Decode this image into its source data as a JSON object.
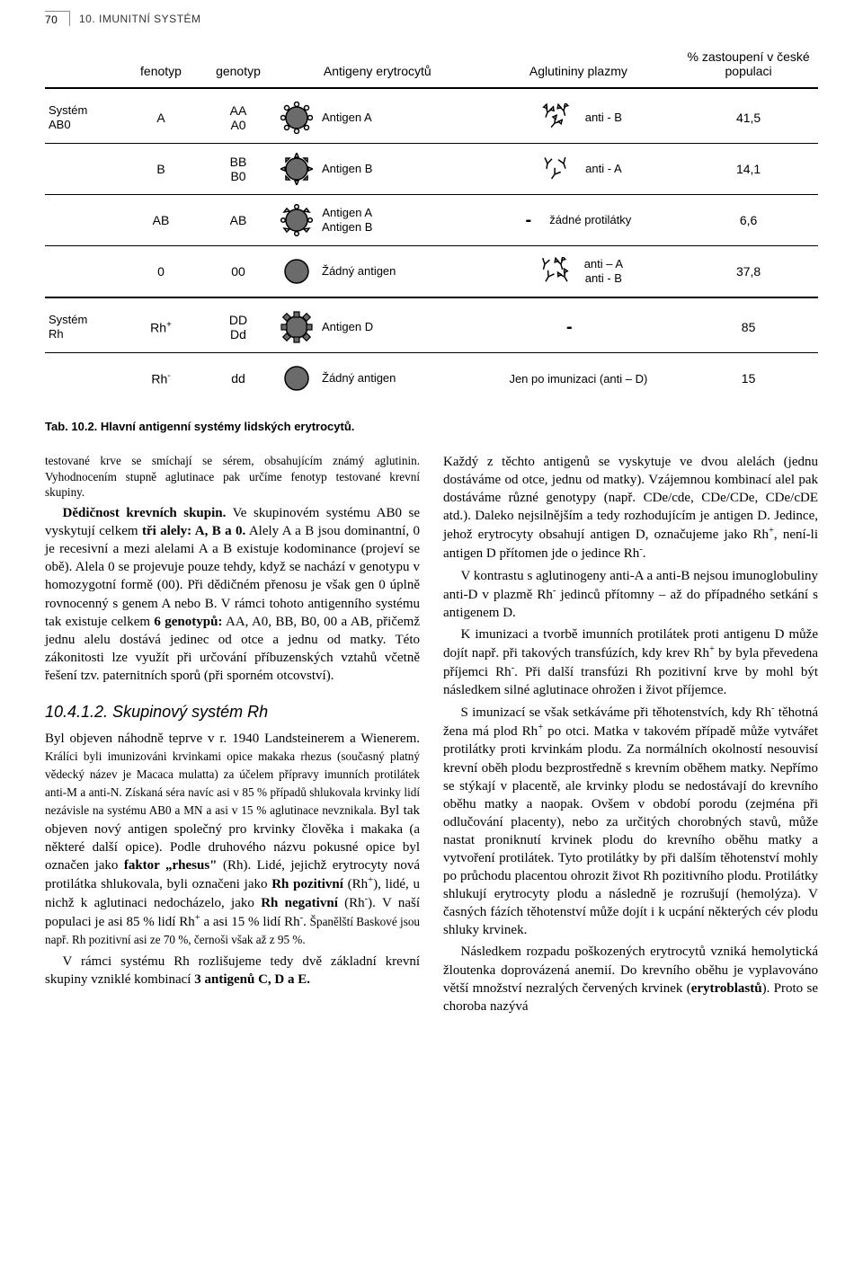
{
  "header": {
    "page_number": "70",
    "chapter": "10. IMUNITNÍ SYSTÉM"
  },
  "table": {
    "columns": [
      "fenotyp",
      "genotyp",
      "Antigeny erytrocytů",
      "Aglutininy plazmy",
      "% zastoupení v české populaci"
    ],
    "groups": [
      {
        "system_label": "Systém AB0",
        "rows": [
          {
            "pheno": "A",
            "geno_lines": [
              "AA",
              "A0"
            ],
            "antigen_icon": "ag-a",
            "antigen_label": "Antigen A",
            "agg_icon": "agg-b",
            "agg_label": "anti - B",
            "pct": "41,5"
          },
          {
            "pheno": "B",
            "geno_lines": [
              "BB",
              "B0"
            ],
            "antigen_icon": "ag-b",
            "antigen_label": "Antigen B",
            "agg_icon": "agg-a",
            "agg_label": "anti - A",
            "pct": "14,1"
          },
          {
            "pheno": "AB",
            "geno_lines": [
              "AB"
            ],
            "antigen_icon": "ag-ab",
            "antigen_label": "Antigen A\nAntigen B",
            "agg_icon": "dash",
            "agg_label": "žádné protilátky",
            "pct": "6,6"
          },
          {
            "pheno": "0",
            "geno_lines": [
              "00"
            ],
            "antigen_icon": "circle",
            "antigen_label": "Žádný antigen",
            "agg_icon": "agg-ab",
            "agg_label": "anti – A\nanti - B",
            "pct": "37,8"
          }
        ]
      },
      {
        "system_label": "Systém Rh",
        "rows": [
          {
            "pheno": "Rh+",
            "geno_lines": [
              "DD",
              "Dd"
            ],
            "antigen_icon": "ag-d",
            "antigen_label": "Antigen D",
            "agg_icon": "dash",
            "agg_label": "",
            "pct": "85"
          },
          {
            "pheno": "Rh-",
            "geno_lines": [
              "dd"
            ],
            "antigen_icon": "circle",
            "antigen_label": "Žádný antigen",
            "agg_icon": "none",
            "agg_label": "Jen po imunizaci (anti – D)",
            "pct": "15"
          }
        ]
      }
    ]
  },
  "caption": "Tab. 10.2. Hlavní antigenní systémy lidských erytrocytů.",
  "body": {
    "p1": "testované krve se smíchají se sérem, obsahujícím známý aglutinin. Vyhodnocením stupně aglutinace pak určíme fenotyp testované krevní skupiny.",
    "p2a": "Dědičnost krevních skupin.",
    "p2b": " Ve skupinovém systému AB0 se vyskytují celkem ",
    "p2c": "tři alely: A, B a 0.",
    "p2d": " Alely A a B jsou dominantní, 0 je recesivní a mezi alelami A a B existuje kodominance (projeví se obě). Alela 0 se projevuje pouze tehdy, když se nachází v genotypu v homozygotní formě (00). Při dědičném přenosu je však gen 0 úplně rovnocenný s genem A nebo B. V rámci tohoto antigenního systému tak existuje celkem ",
    "p2e": "6 genotypů:",
    "p2f": " AA, A0, BB, B0, 00 a AB",
    "p2g": ", přičemž jednu alelu dostává jedinec od otce a jednu od matky. Této zákonitosti lze využít při určování příbuzenských vztahů včetně řešení tzv. paternitních sporů (při sporném otcovství).",
    "h4": "10.4.1.2. Skupinový systém Rh",
    "p3a": "Byl objeven náhodně teprve v r. 1940 Landsteinerem a Wienerem. ",
    "p3b": "Králíci byli imunizováni krvinkami opice makaka rhezus (současný platný vědecký název je Macaca mulatta) za účelem přípravy imunních protilátek anti-M a anti-N. Získaná séra navíc asi v 85 % případů shlukovala krvinky lidí nezávisle na systému AB0 a MN a asi v 15 % aglutinace nevznikala. ",
    "p3c": "Byl tak objeven nový antigen společný pro krvinky člověka i makaka (a některé další opice). Podle druhového názvu pokusné opice byl označen jako ",
    "p3d": "faktor „rhesus\"",
    "p3e": " (Rh). Lidé, jejichž erytrocyty nová protilátka shlukovala, byli označeni jako ",
    "p3f": "Rh pozitivní",
    "p3g": " (Rh",
    "p3g2": "), lidé, u nichž k aglutinaci nedocházelo, jako ",
    "p3h": "Rh negativní",
    "p3i": " (Rh",
    "p3i2": "). V naší populaci je asi 85 % lidí Rh",
    "p3j": " a asi 15 % lidí Rh",
    "p3k": ". ",
    "p3l": "Španělští Baskové jsou např. Rh pozitivní asi ze 70 %, černoši však až z 95 %.",
    "p4a": "V rámci systému Rh rozlišujeme tedy dvě základní krevní skupiny vzniklé kombinací ",
    "p4b": "3 antigenů C, D a E.",
    "p5a": "Každý z těchto antigenů se vyskytuje ve dvou alelách (jednu dostáváme od otce, jednu od matky). Vzájemnou kombinací alel pak dostáváme různé genotypy (např. CDe/cde, CDe/CDe, CDe/cDE atd.). Daleko nejsilnějším a tedy rozhodujícím je antigen D. Jedince, jehož erytrocyty obsahují antigen D, označujeme jako Rh",
    "p5b": ", není-li antigen D přítomen jde o jedince Rh",
    "p5c": ".",
    "p6a": "V kontrastu s aglutinogeny anti-A a anti-B nejsou imunoglobuliny anti-D v plazmě Rh",
    "p6b": " jedinců přítomny – až do případného setkání s antigenem D.",
    "p7a": "K imunizaci a tvorbě imunních protilátek proti antigenu D může dojít např. při takových transfúzích, kdy krev Rh",
    "p7b": " by byla převedena příjemci Rh",
    "p7c": ". Při další transfúzi Rh pozitivní krve by mohl být následkem silné aglutinace ohrožen i život příjemce.",
    "p8": "S imunizací se však setkáváme při těhotenstvích, kdy Rh",
    "p8b": " těhotná žena má plod Rh",
    "p8c": " po otci. Matka v takovém případě může vytvářet protilátky proti krvinkám plodu. Za normálních okolností nesouvisí krevní oběh plodu bezprostředně s krevním oběhem matky. Nepřímo se stýkají v placentě, ale krvinky plodu se nedostávají do krevního oběhu matky a naopak. Ovšem v období porodu (zejména při odlučování placenty), nebo za určitých chorobných stavů, může nastat proniknutí krvinek plodu do krevního oběhu matky a vytvoření protilátek. Tyto protilátky by při dalším těhotenství mohly po průchodu placentou ohrozit život Rh pozitivního plodu. Protilátky shlukují erytrocyty plodu a následně je rozrušují (hemolýza). V časných fázích těhotenství může dojít i k ucpání některých cév plodu shluky krvinek.",
    "p9a": "Následkem rozpadu poškozených erytrocytů vzniká hemolytická žloutenka doprovázená anemií. Do krevního oběhu je vyplavováno větší množství nezralých červených krvinek (",
    "p9b": "erytroblastů",
    "p9c": "). Proto se choroba nazývá"
  },
  "style": {
    "colors": {
      "cell_fill": "#6b6b6b",
      "cell_stroke": "#000",
      "text": "#000",
      "sep": "#000"
    }
  }
}
